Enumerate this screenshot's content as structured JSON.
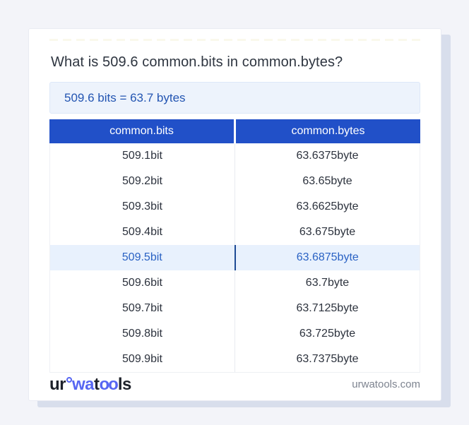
{
  "page": {
    "title": "What is 509.6 common.bits in common.bytes?",
    "result": "509.6 bits = 63.7 bytes"
  },
  "table": {
    "headers": [
      "common.bits",
      "common.bytes"
    ],
    "rows": [
      {
        "bits": "509.1bit",
        "bytes": "63.6375byte",
        "highlight": false
      },
      {
        "bits": "509.2bit",
        "bytes": "63.65byte",
        "highlight": false
      },
      {
        "bits": "509.3bit",
        "bytes": "63.6625byte",
        "highlight": false
      },
      {
        "bits": "509.4bit",
        "bytes": "63.675byte",
        "highlight": false
      },
      {
        "bits": "509.5bit",
        "bytes": "63.6875byte",
        "highlight": true
      },
      {
        "bits": "509.6bit",
        "bytes": "63.7byte",
        "highlight": false
      },
      {
        "bits": "509.7bit",
        "bytes": "63.7125byte",
        "highlight": false
      },
      {
        "bits": "509.8bit",
        "bytes": "63.725byte",
        "highlight": false
      },
      {
        "bits": "509.9bit",
        "bytes": "63.7375byte",
        "highlight": false
      }
    ]
  },
  "footer": {
    "logo": {
      "part1": "ur",
      "part2": "wa",
      "part3": "t",
      "part4": "oo",
      "part5": "ls"
    },
    "domain": "urwatools.com"
  },
  "colors": {
    "page_background": "#f3f4f9",
    "card_background": "#ffffff",
    "card_shadow": "#d8deec",
    "header_blue": "#2150c8",
    "result_box_background": "#edf3fc",
    "result_text_blue": "#2355b2",
    "highlight_row_background": "#e8f1fd",
    "highlight_text_blue": "#2a62c4",
    "highlight_divider_navy": "#1d4a94",
    "logo_blue": "#5766f2",
    "body_text": "#2c323d",
    "footer_gray": "#7e8490"
  }
}
